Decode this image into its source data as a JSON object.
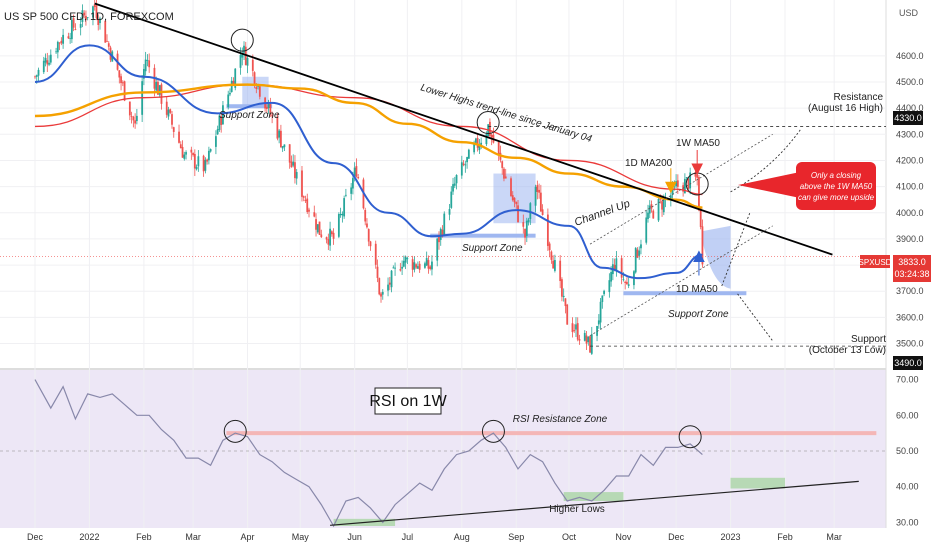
{
  "header": {
    "title": "US SP 500 CFD, 1D, FOREXCOM"
  },
  "axis": {
    "currency": "USD",
    "price_ticks": [
      "4600.0",
      "4500.0",
      "4400.0",
      "4300.0",
      "4200.0",
      "4100.0",
      "4000.0",
      "3900.0",
      "3800.0",
      "3700.0",
      "3600.0",
      "3500.0"
    ],
    "rsi_ticks": [
      "70.00",
      "60.00",
      "50.00",
      "40.00",
      "30.00"
    ],
    "x_ticks": [
      "Dec",
      "2022",
      "Feb",
      "Mar",
      "Apr",
      "May",
      "Jun",
      "Jul",
      "Aug",
      "Sep",
      "Oct",
      "Nov",
      "Dec",
      "2023",
      "Feb",
      "Mar"
    ]
  },
  "price_tags": {
    "resistance": "4330.0",
    "symbol": "SPXUSD",
    "last_price": "3833.0",
    "countdown": "03:24:38",
    "support": "3490.0"
  },
  "annotations": {
    "support_zone": "Support Zone",
    "trendline": "Lower Highs trend-line since January 04",
    "channel": "Channel Up",
    "ma200_label": "1D MA200",
    "w_ma50_label": "1W MA50",
    "d_ma50_label": "1D MA50",
    "resistance_1": "Resistance",
    "resistance_2": "(August 16 High)",
    "support_1": "Support",
    "support_2": "(October 13 Low)",
    "callout": [
      "Only a closing",
      "above the 1W MA50",
      "can give more upside"
    ],
    "rsi_title": "RSI on 1W",
    "rsi_zone": "RSI Resistance Zone",
    "higher_lows": "Higher Lows"
  },
  "colors": {
    "ma200_daily": "#f5a100",
    "ma50_daily": "#2f5fd0",
    "ma50_weekly": "#ea3a3a",
    "bull": "#26a69a",
    "bear": "#ef5350",
    "rsi_line": "#8888aa",
    "rsi_bg": "#ede7f6",
    "zone_blue": "#9fb7f0",
    "callout_red": "#e8262c"
  },
  "chart_data": {
    "type": "line",
    "price_range": [
      3460,
      4760
    ],
    "rsi_range": [
      29,
      71
    ],
    "close": [
      [
        "2021-12-01",
        4520
      ],
      [
        "2021-12-15",
        4660
      ],
      [
        "2022-01-04",
        4790
      ],
      [
        "2022-01-20",
        4480
      ],
      [
        "2022-01-27",
        4330
      ],
      [
        "2022-02-02",
        4590
      ],
      [
        "2022-02-24",
        4220
      ],
      [
        "2022-03-08",
        4170
      ],
      [
        "2022-03-29",
        4630
      ],
      [
        "2022-04-12",
        4410
      ],
      [
        "2022-04-29",
        4130
      ],
      [
        "2022-05-12",
        3930
      ],
      [
        "2022-05-20",
        3900
      ],
      [
        "2022-06-02",
        4170
      ],
      [
        "2022-06-16",
        3670
      ],
      [
        "2022-06-28",
        3820
      ],
      [
        "2022-07-14",
        3790
      ],
      [
        "2022-07-29",
        4130
      ],
      [
        "2022-08-16",
        4330
      ],
      [
        "2022-09-06",
        3910
      ],
      [
        "2022-09-12",
        4110
      ],
      [
        "2022-09-30",
        3590
      ],
      [
        "2022-10-13",
        3490
      ],
      [
        "2022-10-27",
        3810
      ],
      [
        "2022-11-03",
        3720
      ],
      [
        "2022-11-15",
        3990
      ],
      [
        "2022-11-30",
        4080
      ],
      [
        "2022-12-01",
        4100
      ],
      [
        "2022-12-13",
        4130
      ],
      [
        "2022-12-16",
        3833
      ]
    ],
    "ma200": [
      [
        "2021-12-01",
        4370
      ],
      [
        "2022-02-01",
        4460
      ],
      [
        "2022-04-01",
        4490
      ],
      [
        "2022-05-01",
        4475
      ],
      [
        "2022-06-01",
        4420
      ],
      [
        "2022-07-01",
        4340
      ],
      [
        "2022-08-01",
        4270
      ],
      [
        "2022-09-01",
        4210
      ],
      [
        "2022-10-01",
        4150
      ],
      [
        "2022-11-01",
        4100
      ],
      [
        "2022-12-01",
        4050
      ],
      [
        "2022-12-16",
        4020
      ]
    ],
    "ma50_daily": [
      [
        "2021-12-01",
        4500
      ],
      [
        "2022-01-01",
        4640
      ],
      [
        "2022-02-01",
        4520
      ],
      [
        "2022-03-15",
        4380
      ],
      [
        "2022-04-15",
        4420
      ],
      [
        "2022-05-20",
        4190
      ],
      [
        "2022-06-20",
        4000
      ],
      [
        "2022-07-15",
        3910
      ],
      [
        "2022-08-01",
        3920
      ],
      [
        "2022-09-01",
        4010
      ],
      [
        "2022-10-01",
        3950
      ],
      [
        "2022-10-20",
        3790
      ],
      [
        "2022-11-10",
        3750
      ],
      [
        "2022-12-01",
        3770
      ],
      [
        "2022-12-16",
        3840
      ]
    ],
    "ma50_weekly": [
      [
        "2021-12-01",
        4330
      ],
      [
        "2022-02-01",
        4440
      ],
      [
        "2022-04-01",
        4490
      ],
      [
        "2022-06-01",
        4440
      ],
      [
        "2022-08-01",
        4330
      ],
      [
        "2022-10-01",
        4200
      ],
      [
        "2022-12-01",
        4090
      ],
      [
        "2022-12-16",
        4070
      ]
    ],
    "rsi": [
      [
        "2021-12-01",
        70
      ],
      [
        "2021-12-10",
        62
      ],
      [
        "2021-12-17",
        68
      ],
      [
        "2021-12-24",
        59
      ],
      [
        "2021-12-31",
        66
      ],
      [
        "2022-01-07",
        65
      ],
      [
        "2022-01-14",
        66
      ],
      [
        "2022-01-21",
        63
      ],
      [
        "2022-01-28",
        60
      ],
      [
        "2022-02-04",
        60
      ],
      [
        "2022-02-11",
        56
      ],
      [
        "2022-02-18",
        53
      ],
      [
        "2022-02-25",
        48
      ],
      [
        "2022-03-04",
        48
      ],
      [
        "2022-03-11",
        46
      ],
      [
        "2022-03-18",
        53
      ],
      [
        "2022-03-25",
        55
      ],
      [
        "2022-04-01",
        54
      ],
      [
        "2022-04-08",
        49
      ],
      [
        "2022-04-15",
        47
      ],
      [
        "2022-04-22",
        44
      ],
      [
        "2022-04-29",
        42
      ],
      [
        "2022-05-06",
        40
      ],
      [
        "2022-05-13",
        35
      ],
      [
        "2022-05-20",
        29
      ],
      [
        "2022-05-27",
        36
      ],
      [
        "2022-06-03",
        37
      ],
      [
        "2022-06-10",
        34
      ],
      [
        "2022-06-17",
        30
      ],
      [
        "2022-06-24",
        35
      ],
      [
        "2022-07-01",
        38
      ],
      [
        "2022-07-08",
        41
      ],
      [
        "2022-07-15",
        39
      ],
      [
        "2022-07-22",
        45
      ],
      [
        "2022-07-29",
        49
      ],
      [
        "2022-08-05",
        50
      ],
      [
        "2022-08-12",
        53
      ],
      [
        "2022-08-19",
        55
      ],
      [
        "2022-08-26",
        51
      ],
      [
        "2022-09-02",
        45
      ],
      [
        "2022-09-09",
        49
      ],
      [
        "2022-09-16",
        47
      ],
      [
        "2022-09-23",
        41
      ],
      [
        "2022-09-30",
        36
      ],
      [
        "2022-10-07",
        37
      ],
      [
        "2022-10-14",
        36
      ],
      [
        "2022-10-21",
        39
      ],
      [
        "2022-10-28",
        43
      ],
      [
        "2022-11-04",
        43
      ],
      [
        "2022-11-11",
        49
      ],
      [
        "2022-11-18",
        46
      ],
      [
        "2022-11-25",
        51
      ],
      [
        "2022-12-02",
        51
      ],
      [
        "2022-12-09",
        52
      ],
      [
        "2022-12-16",
        49
      ]
    ],
    "levels": {
      "resistance": 4330,
      "support": 3490,
      "last": 3833,
      "rsi_resistance": 55,
      "rsi_mid": 50
    }
  }
}
